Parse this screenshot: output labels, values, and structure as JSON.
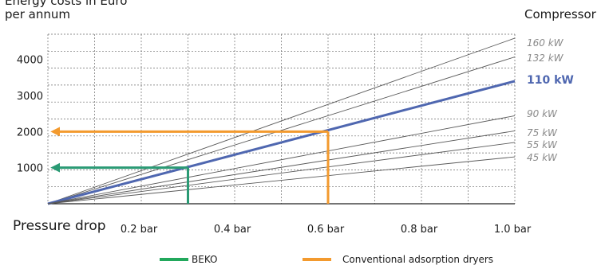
{
  "chart_data": {
    "type": "line",
    "title_line1": "Energy costs in Euro",
    "title_line2": "per annum",
    "series_header": "Compressor",
    "xlabel": "Pressure drop",
    "x_ticks": [
      "0.2 bar",
      "0.4 bar",
      "0.6 bar",
      "0.8 bar",
      "1.0 bar"
    ],
    "x_tick_values": [
      0.2,
      0.4,
      0.6,
      0.8,
      1.0
    ],
    "xlim": [
      0,
      1.0
    ],
    "y_ticks": [
      "1000",
      "2000",
      "3000",
      "4000"
    ],
    "y_tick_values": [
      1000,
      2000,
      3000,
      4000
    ],
    "ylim": [
      0,
      4700
    ],
    "grid": true,
    "series": [
      {
        "name": "160 kW",
        "x": [
          0,
          1.0
        ],
        "y": [
          0,
          4590
        ],
        "highlight": false
      },
      {
        "name": "132 kW",
        "x": [
          0,
          1.0
        ],
        "y": [
          0,
          4070
        ],
        "highlight": false
      },
      {
        "name": "110 kW",
        "x": [
          0,
          1.0
        ],
        "y": [
          0,
          3400
        ],
        "highlight": true
      },
      {
        "name": "90 kW",
        "x": [
          0,
          1.0
        ],
        "y": [
          0,
          2440
        ],
        "highlight": false
      },
      {
        "name": "75 kW",
        "x": [
          0,
          1.0
        ],
        "y": [
          0,
          2020
        ],
        "highlight": false
      },
      {
        "name": "55 kW",
        "x": [
          0,
          1.0
        ],
        "y": [
          0,
          1700
        ],
        "highlight": false
      },
      {
        "name": "45 kW",
        "x": [
          0,
          1.0
        ],
        "y": [
          0,
          1300
        ],
        "highlight": false
      }
    ],
    "markers": [
      {
        "name": "BEKO",
        "x": 0.3,
        "y": 1000,
        "color": "#2a9a74"
      },
      {
        "name": "Conventional adsorption dryers",
        "x": 0.6,
        "y": 2000,
        "color": "#f39a2e"
      }
    ],
    "legend": [
      {
        "label": "BEKO",
        "color": "#22a85c"
      },
      {
        "label": "Conventional adsorption dryers",
        "color": "#f39a2e"
      }
    ],
    "colors": {
      "highlight_line": "#4f67b0",
      "thin_line": "#5a5a5a",
      "grid": "#6a6a6a",
      "label_gray": "#8a8a8a"
    }
  }
}
